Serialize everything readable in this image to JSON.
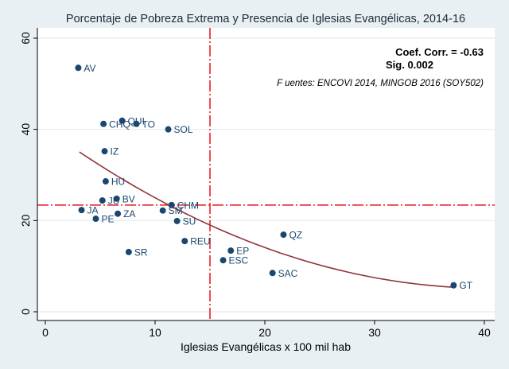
{
  "chart_data": {
    "type": "scatter",
    "title": "Porcentaje de Pobreza Extrema y Presencia de Iglesias Evangélicas, 2014-16",
    "xlabel": "Iglesias Evangélicas x 100 mil hab",
    "ylabel": "",
    "xlim": [
      0,
      40
    ],
    "ylim": [
      0,
      60
    ],
    "xticks": [
      0,
      10,
      20,
      30,
      40
    ],
    "yticks": [
      0,
      20,
      40,
      60
    ],
    "grid": "horizontal",
    "annotations": {
      "corr": "Coef. Corr. = -0.63",
      "sig": "Sig. 0.002",
      "source": "F uentes: ENCOVI 2014, MINGOB 2016 (SOY502)"
    },
    "reference_lines": {
      "x": 15,
      "y": 23.4
    },
    "fit": {
      "type": "quadratic",
      "x_range": [
        3.1,
        37.2
      ],
      "coef": [
        40.22,
        -1.737,
        0.02152
      ]
    },
    "colors": {
      "marker": "#1a476f",
      "fit": "#90353b",
      "reference": "#e8101a",
      "background": "#e8f0f3",
      "grid": "#e4ecef"
    },
    "points": [
      {
        "label": "AV",
        "x": 3.0,
        "y": 53.5
      },
      {
        "label": "CHQ",
        "x": 5.3,
        "y": 41.2
      },
      {
        "label": "QUI",
        "x": 7.0,
        "y": 41.9
      },
      {
        "label": "TO",
        "x": 8.3,
        "y": 41.2
      },
      {
        "label": "SOL",
        "x": 11.2,
        "y": 40.0
      },
      {
        "label": "IZ",
        "x": 5.4,
        "y": 35.2
      },
      {
        "label": "HU",
        "x": 5.5,
        "y": 28.6
      },
      {
        "label": "JU",
        "x": 5.2,
        "y": 24.4
      },
      {
        "label": "BV",
        "x": 6.5,
        "y": 24.8
      },
      {
        "label": "CHM",
        "x": 11.5,
        "y": 23.4
      },
      {
        "label": "JA",
        "x": 3.3,
        "y": 22.3
      },
      {
        "label": "SM",
        "x": 10.7,
        "y": 22.2
      },
      {
        "label": "ZA",
        "x": 6.6,
        "y": 21.5
      },
      {
        "label": "PE",
        "x": 4.6,
        "y": 20.4
      },
      {
        "label": "SU",
        "x": 12.0,
        "y": 19.9
      },
      {
        "label": "REU",
        "x": 12.7,
        "y": 15.5
      },
      {
        "label": "SR",
        "x": 7.6,
        "y": 13.1
      },
      {
        "label": "EP",
        "x": 16.9,
        "y": 13.4
      },
      {
        "label": "ESC",
        "x": 16.2,
        "y": 11.3
      },
      {
        "label": "QZ",
        "x": 21.7,
        "y": 16.9
      },
      {
        "label": "SAC",
        "x": 20.7,
        "y": 8.5
      },
      {
        "label": "GT",
        "x": 37.2,
        "y": 5.8
      }
    ]
  }
}
